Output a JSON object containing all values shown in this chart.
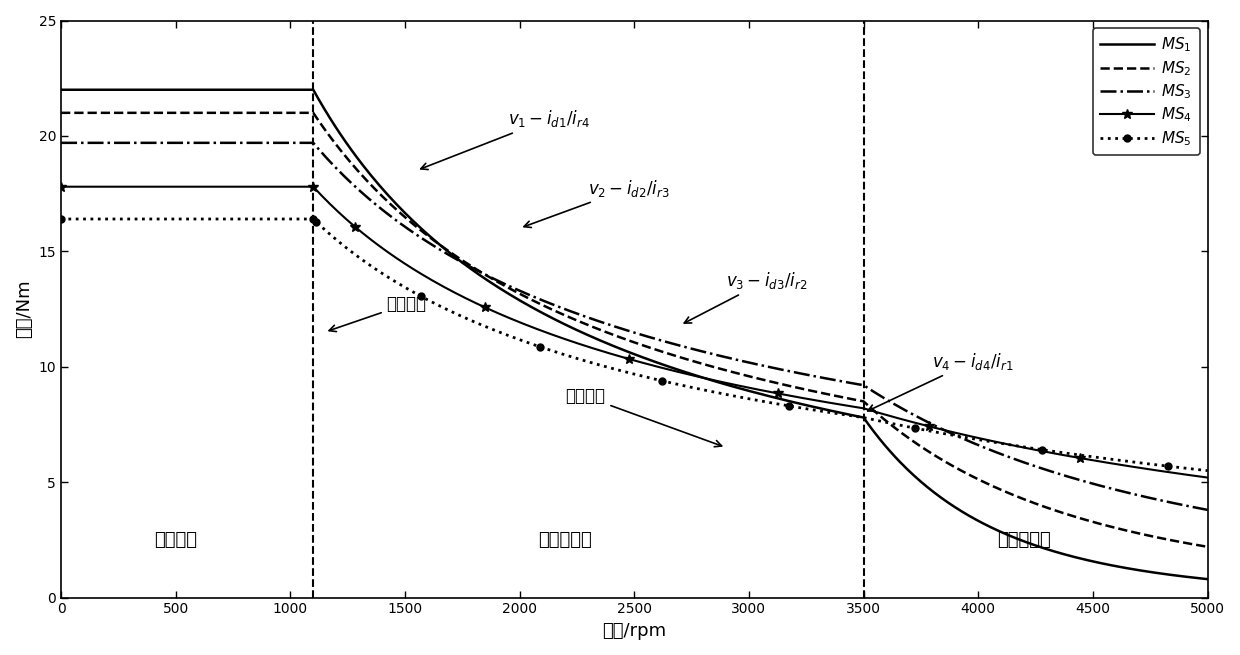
{
  "xlabel": "转速/rpm",
  "ylabel": "转矩/Nm",
  "xlim": [
    0,
    5000
  ],
  "ylim": [
    0,
    25
  ],
  "xticks": [
    0,
    500,
    1000,
    1500,
    2000,
    2500,
    3000,
    3500,
    4000,
    4500,
    5000
  ],
  "yticks": [
    0,
    5,
    10,
    15,
    20,
    25
  ],
  "vline1": 1100,
  "vline2": 3500,
  "const_torques": [
    22.0,
    21.0,
    19.7,
    17.8,
    16.4
  ],
  "base_speed": 1100,
  "region2_end": 3500,
  "final_speed": 5000,
  "final_torques": [
    0.8,
    2.2,
    3.8,
    5.2,
    5.5
  ],
  "torques_at_3500": [
    7.8,
    8.5,
    9.2,
    8.2,
    7.8
  ],
  "torques_at_1300": [
    18.5,
    17.8,
    17.0,
    16.3,
    15.8
  ],
  "legend_labels": [
    "$MS_1$",
    "$MS_2$",
    "$MS_3$",
    "$MS_4$",
    "$MS_5$"
  ],
  "background_color": "#ffffff",
  "figsize": [
    12.4,
    6.55
  ],
  "dpi": 100
}
